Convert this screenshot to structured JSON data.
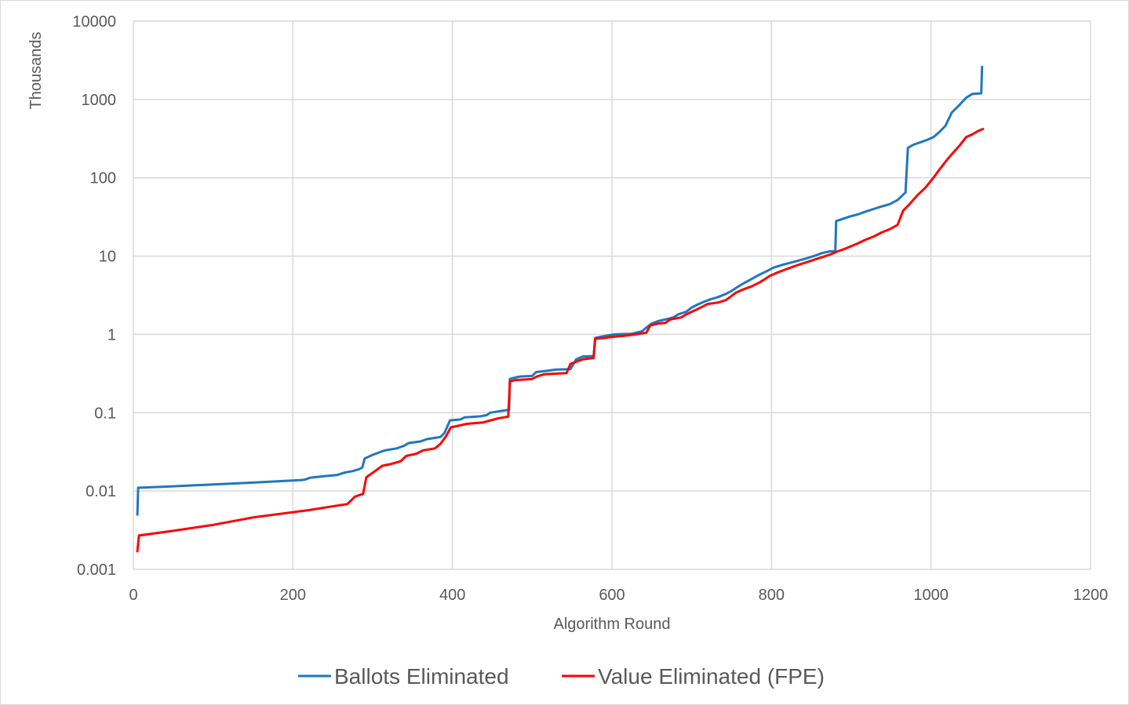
{
  "chart_data": {
    "type": "line",
    "title": "",
    "xlabel": "Algorithm Round",
    "ylabel": "Thousands",
    "y_scale": "log",
    "xlim": [
      0,
      1200
    ],
    "ylim": [
      0.001,
      10000
    ],
    "x_ticks": [
      0,
      200,
      400,
      600,
      800,
      1000,
      1200
    ],
    "x_tick_labels": [
      "0",
      "200",
      "400",
      "600",
      "800",
      "1000",
      "1200"
    ],
    "y_ticks": [
      0.001,
      0.01,
      0.1,
      1,
      10,
      100,
      1000,
      10000
    ],
    "y_tick_labels": [
      "0.001",
      "0.01",
      "0.1",
      "1",
      "10",
      "100",
      "1000",
      "10000"
    ],
    "grid": true,
    "legend_position": "bottom",
    "series": [
      {
        "name": "Ballots Eliminated",
        "color": "#1f77c0",
        "points": [
          [
            5,
            0.005
          ],
          [
            6,
            0.011
          ],
          [
            50,
            0.0115
          ],
          [
            150,
            0.0128
          ],
          [
            210,
            0.0138
          ],
          [
            215,
            0.014
          ],
          [
            222,
            0.0148
          ],
          [
            240,
            0.0155
          ],
          [
            255,
            0.016
          ],
          [
            265,
            0.0172
          ],
          [
            275,
            0.018
          ],
          [
            283,
            0.019
          ],
          [
            287,
            0.02
          ],
          [
            290,
            0.026
          ],
          [
            300,
            0.029
          ],
          [
            315,
            0.033
          ],
          [
            330,
            0.035
          ],
          [
            340,
            0.038
          ],
          [
            345,
            0.041
          ],
          [
            360,
            0.043
          ],
          [
            368,
            0.046
          ],
          [
            385,
            0.049
          ],
          [
            390,
            0.055
          ],
          [
            397,
            0.08
          ],
          [
            410,
            0.082
          ],
          [
            415,
            0.087
          ],
          [
            435,
            0.09
          ],
          [
            443,
            0.093
          ],
          [
            447,
            0.1
          ],
          [
            471,
            0.109
          ],
          [
            472,
            0.27
          ],
          [
            478,
            0.28
          ],
          [
            485,
            0.29
          ],
          [
            500,
            0.295
          ],
          [
            505,
            0.33
          ],
          [
            520,
            0.345
          ],
          [
            530,
            0.355
          ],
          [
            548,
            0.36
          ],
          [
            555,
            0.48
          ],
          [
            563,
            0.52
          ],
          [
            577,
            0.53
          ],
          [
            579,
            0.9
          ],
          [
            585,
            0.93
          ],
          [
            595,
            0.97
          ],
          [
            603,
            1.0
          ],
          [
            612,
            1.01
          ],
          [
            625,
            1.02
          ],
          [
            638,
            1.1
          ],
          [
            643,
            1.22
          ],
          [
            650,
            1.38
          ],
          [
            658,
            1.48
          ],
          [
            667,
            1.55
          ],
          [
            677,
            1.65
          ],
          [
            683,
            1.8
          ],
          [
            693,
            1.95
          ],
          [
            700,
            2.2
          ],
          [
            707,
            2.4
          ],
          [
            715,
            2.6
          ],
          [
            723,
            2.8
          ],
          [
            733,
            3.0
          ],
          [
            743,
            3.3
          ],
          [
            750,
            3.6
          ],
          [
            760,
            4.2
          ],
          [
            767,
            4.6
          ],
          [
            775,
            5.1
          ],
          [
            785,
            5.8
          ],
          [
            795,
            6.5
          ],
          [
            802,
            7.1
          ],
          [
            813,
            7.7
          ],
          [
            823,
            8.2
          ],
          [
            833,
            8.7
          ],
          [
            843,
            9.3
          ],
          [
            853,
            10.0
          ],
          [
            863,
            10.9
          ],
          [
            873,
            11.5
          ],
          [
            880,
            11.6
          ],
          [
            881,
            28
          ],
          [
            890,
            30
          ],
          [
            898,
            32
          ],
          [
            908,
            34
          ],
          [
            918,
            37
          ],
          [
            928,
            40
          ],
          [
            938,
            43
          ],
          [
            948,
            46
          ],
          [
            958,
            52
          ],
          [
            963,
            58
          ],
          [
            968,
            65
          ],
          [
            971,
            240
          ],
          [
            978,
            265
          ],
          [
            985,
            280
          ],
          [
            995,
            305
          ],
          [
            1003,
            330
          ],
          [
            1010,
            380
          ],
          [
            1018,
            460
          ],
          [
            1026,
            680
          ],
          [
            1036,
            860
          ],
          [
            1044,
            1050
          ],
          [
            1052,
            1180
          ],
          [
            1063,
            1200
          ],
          [
            1064,
            2600
          ]
        ]
      },
      {
        "name": "Value Eliminated (FPE)",
        "color": "#ff0000",
        "points": [
          [
            5,
            0.0017
          ],
          [
            7,
            0.0027
          ],
          [
            50,
            0.0031
          ],
          [
            100,
            0.0037
          ],
          [
            150,
            0.0046
          ],
          [
            220,
            0.0057
          ],
          [
            255,
            0.0065
          ],
          [
            268,
            0.0068
          ],
          [
            278,
            0.0085
          ],
          [
            288,
            0.0092
          ],
          [
            292,
            0.015
          ],
          [
            303,
            0.018
          ],
          [
            312,
            0.021
          ],
          [
            322,
            0.022
          ],
          [
            335,
            0.024
          ],
          [
            342,
            0.028
          ],
          [
            355,
            0.03
          ],
          [
            363,
            0.033
          ],
          [
            378,
            0.035
          ],
          [
            385,
            0.04
          ],
          [
            392,
            0.05
          ],
          [
            398,
            0.065
          ],
          [
            407,
            0.068
          ],
          [
            418,
            0.072
          ],
          [
            438,
            0.075
          ],
          [
            448,
            0.08
          ],
          [
            458,
            0.085
          ],
          [
            470,
            0.089
          ],
          [
            472,
            0.25
          ],
          [
            478,
            0.26
          ],
          [
            490,
            0.265
          ],
          [
            500,
            0.27
          ],
          [
            506,
            0.29
          ],
          [
            515,
            0.31
          ],
          [
            543,
            0.32
          ],
          [
            548,
            0.42
          ],
          [
            563,
            0.48
          ],
          [
            577,
            0.5
          ],
          [
            579,
            0.88
          ],
          [
            590,
            0.9
          ],
          [
            600,
            0.93
          ],
          [
            615,
            0.96
          ],
          [
            630,
            1.0
          ],
          [
            643,
            1.05
          ],
          [
            648,
            1.3
          ],
          [
            658,
            1.38
          ],
          [
            667,
            1.4
          ],
          [
            673,
            1.55
          ],
          [
            687,
            1.65
          ],
          [
            693,
            1.8
          ],
          [
            705,
            2.05
          ],
          [
            713,
            2.25
          ],
          [
            720,
            2.45
          ],
          [
            733,
            2.55
          ],
          [
            743,
            2.75
          ],
          [
            748,
            3.0
          ],
          [
            755,
            3.4
          ],
          [
            763,
            3.7
          ],
          [
            775,
            4.1
          ],
          [
            785,
            4.6
          ],
          [
            792,
            5.1
          ],
          [
            798,
            5.6
          ],
          [
            808,
            6.2
          ],
          [
            815,
            6.6
          ],
          [
            825,
            7.2
          ],
          [
            835,
            7.8
          ],
          [
            845,
            8.4
          ],
          [
            855,
            9.1
          ],
          [
            865,
            9.8
          ],
          [
            875,
            10.6
          ],
          [
            883,
            11.5
          ],
          [
            893,
            12.5
          ],
          [
            900,
            13.4
          ],
          [
            908,
            14.5
          ],
          [
            918,
            16.2
          ],
          [
            928,
            17.8
          ],
          [
            938,
            20
          ],
          [
            948,
            22
          ],
          [
            958,
            25
          ],
          [
            965,
            38
          ],
          [
            973,
            46
          ],
          [
            983,
            60
          ],
          [
            993,
            75
          ],
          [
            1003,
            100
          ],
          [
            1010,
            125
          ],
          [
            1018,
            160
          ],
          [
            1026,
            200
          ],
          [
            1036,
            260
          ],
          [
            1044,
            330
          ],
          [
            1052,
            360
          ],
          [
            1060,
            400
          ],
          [
            1065,
            420
          ]
        ]
      }
    ]
  }
}
